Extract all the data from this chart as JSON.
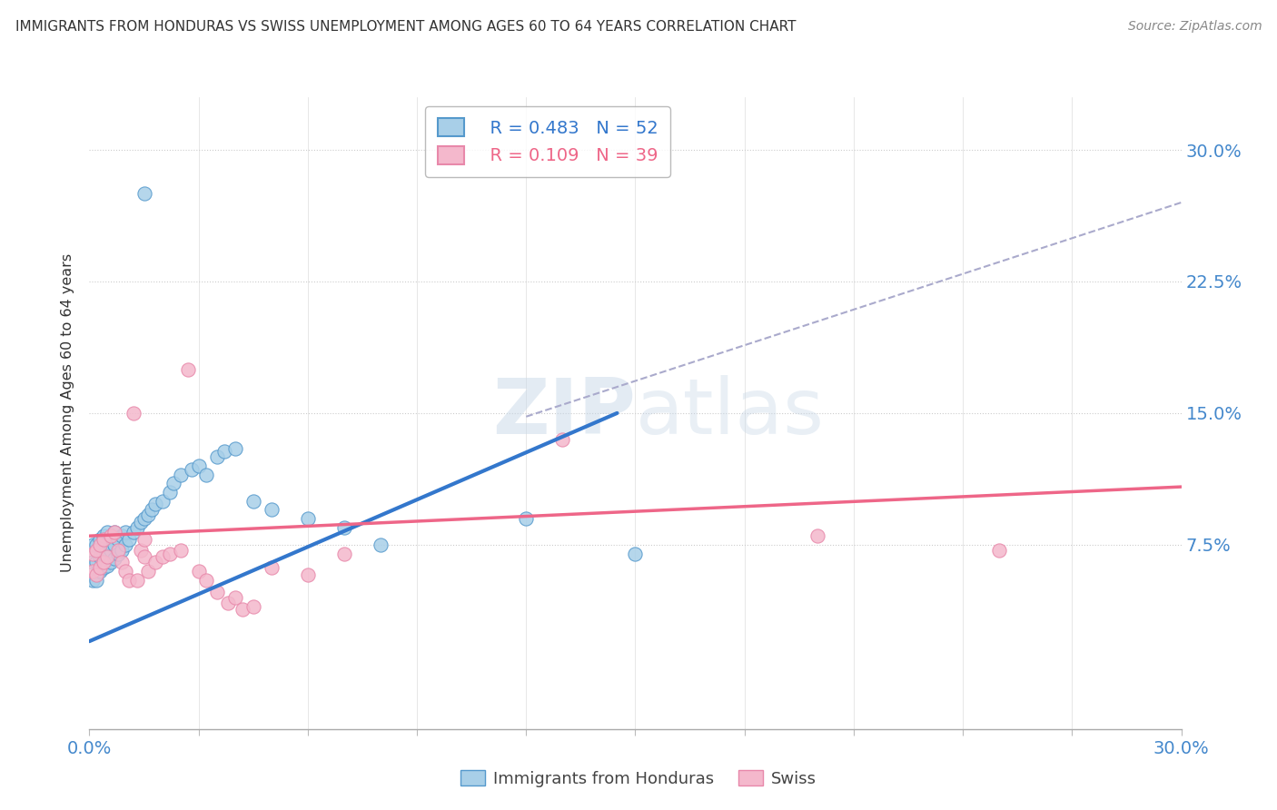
{
  "title": "IMMIGRANTS FROM HONDURAS VS SWISS UNEMPLOYMENT AMONG AGES 60 TO 64 YEARS CORRELATION CHART",
  "source": "Source: ZipAtlas.com",
  "ylabel": "Unemployment Among Ages 60 to 64 years",
  "xlim": [
    0.0,
    0.3
  ],
  "ylim": [
    -0.03,
    0.33
  ],
  "xticks": [
    0.0,
    0.03,
    0.06,
    0.09,
    0.12,
    0.15,
    0.18,
    0.21,
    0.24,
    0.27,
    0.3
  ],
  "ytick_vals": [
    0.075,
    0.15,
    0.225,
    0.3
  ],
  "ytick_labels_right": [
    "7.5%",
    "15.0%",
    "22.5%",
    "30.0%"
  ],
  "legend_r1": "R = 0.483",
  "legend_n1": "N = 52",
  "legend_r2": "R = 0.109",
  "legend_n2": "N = 39",
  "blue_color": "#a8cfe8",
  "pink_color": "#f4b8cc",
  "blue_edge_color": "#5599cc",
  "pink_edge_color": "#e888aa",
  "blue_line_color": "#3377cc",
  "pink_line_color": "#ee6688",
  "gray_dash_color": "#aaaacc",
  "blue_scatter_x": [
    0.001,
    0.001,
    0.001,
    0.002,
    0.002,
    0.002,
    0.003,
    0.003,
    0.003,
    0.004,
    0.004,
    0.004,
    0.005,
    0.005,
    0.005,
    0.006,
    0.006,
    0.007,
    0.007,
    0.007,
    0.008,
    0.008,
    0.009,
    0.009,
    0.01,
    0.01,
    0.011,
    0.012,
    0.013,
    0.014,
    0.015,
    0.015,
    0.016,
    0.017,
    0.018,
    0.02,
    0.022,
    0.023,
    0.025,
    0.028,
    0.03,
    0.032,
    0.035,
    0.037,
    0.04,
    0.045,
    0.05,
    0.06,
    0.07,
    0.08,
    0.12,
    0.15
  ],
  "blue_scatter_y": [
    0.055,
    0.065,
    0.075,
    0.055,
    0.065,
    0.075,
    0.06,
    0.068,
    0.078,
    0.062,
    0.07,
    0.08,
    0.063,
    0.072,
    0.082,
    0.065,
    0.072,
    0.067,
    0.075,
    0.082,
    0.07,
    0.078,
    0.072,
    0.08,
    0.075,
    0.082,
    0.078,
    0.082,
    0.085,
    0.088,
    0.09,
    0.275,
    0.092,
    0.095,
    0.098,
    0.1,
    0.105,
    0.11,
    0.115,
    0.118,
    0.12,
    0.115,
    0.125,
    0.128,
    0.13,
    0.1,
    0.095,
    0.09,
    0.085,
    0.075,
    0.09,
    0.07
  ],
  "pink_scatter_x": [
    0.001,
    0.001,
    0.002,
    0.002,
    0.003,
    0.003,
    0.004,
    0.004,
    0.005,
    0.006,
    0.007,
    0.008,
    0.009,
    0.01,
    0.011,
    0.012,
    0.013,
    0.014,
    0.015,
    0.015,
    0.016,
    0.018,
    0.02,
    0.022,
    0.025,
    0.027,
    0.03,
    0.032,
    0.035,
    0.038,
    0.04,
    0.042,
    0.045,
    0.05,
    0.06,
    0.07,
    0.13,
    0.2,
    0.25
  ],
  "pink_scatter_y": [
    0.06,
    0.07,
    0.058,
    0.072,
    0.062,
    0.075,
    0.065,
    0.078,
    0.068,
    0.08,
    0.082,
    0.072,
    0.065,
    0.06,
    0.055,
    0.15,
    0.055,
    0.072,
    0.078,
    0.068,
    0.06,
    0.065,
    0.068,
    0.07,
    0.072,
    0.175,
    0.06,
    0.055,
    0.048,
    0.042,
    0.045,
    0.038,
    0.04,
    0.062,
    0.058,
    0.07,
    0.135,
    0.08,
    0.072
  ],
  "blue_trend_x": [
    0.0,
    0.145
  ],
  "blue_trend_y": [
    0.02,
    0.15
  ],
  "pink_trend_x": [
    0.0,
    0.3
  ],
  "pink_trend_y": [
    0.08,
    0.108
  ],
  "gray_trend_x": [
    0.12,
    0.3
  ],
  "gray_trend_y": [
    0.148,
    0.27
  ],
  "background_color": "#ffffff",
  "grid_color": "#cccccc",
  "axis_color": "#4488cc",
  "text_color": "#333333"
}
